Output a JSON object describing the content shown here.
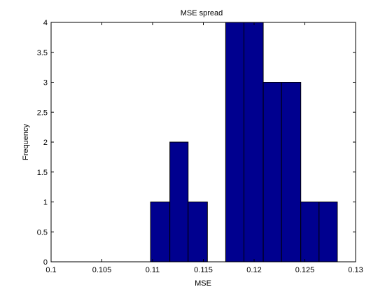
{
  "chart_data": {
    "type": "bar",
    "title": "MSE spread",
    "xlabel": "MSE",
    "ylabel": "Frequency",
    "xlim": [
      0.1,
      0.13
    ],
    "ylim": [
      0,
      4
    ],
    "x_ticks": [
      "0.1",
      "0.105",
      "0.11",
      "0.115",
      "0.12",
      "0.125",
      "0.13"
    ],
    "y_ticks": [
      "0",
      "0.5",
      "1",
      "1.5",
      "2",
      "2.5",
      "3",
      "3.5",
      "4"
    ],
    "grid": false,
    "legend": "none",
    "bar_color": "#00008f",
    "bin_edges": [
      0.1098,
      0.1117,
      0.1135,
      0.1154,
      0.1172,
      0.119,
      0.1209,
      0.1227,
      0.1246,
      0.1264,
      0.1282
    ],
    "values": [
      1,
      2,
      1,
      0,
      4,
      4,
      3,
      3,
      1,
      1
    ]
  }
}
